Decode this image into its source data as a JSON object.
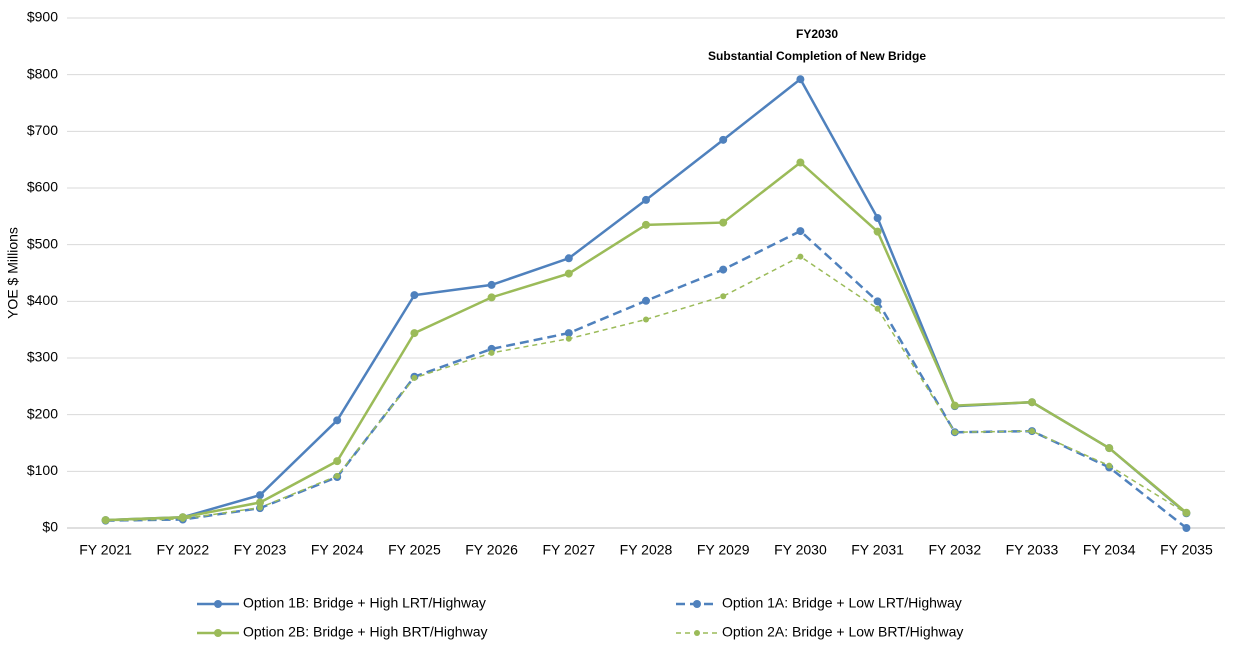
{
  "chart_data": {
    "type": "line",
    "ylabel": "YOE $ Millions",
    "annotations": [
      "FY2030",
      "Substantial Completion of New Bridge"
    ],
    "categories": [
      "FY 2021",
      "FY 2022",
      "FY 2023",
      "FY 2024",
      "FY 2025",
      "FY 2026",
      "FY 2027",
      "FY 2028",
      "FY 2029",
      "FY 2030",
      "FY 2031",
      "FY 2032",
      "FY 2033",
      "FY 2034",
      "FY 2035"
    ],
    "series": [
      {
        "name": "Option 1B: Bridge + High LRT/Highway",
        "color": "#4f81bd",
        "dashed": false,
        "values": [
          14,
          19,
          58,
          190,
          411,
          429,
          476,
          579,
          685,
          792,
          547,
          215,
          222,
          141,
          26
        ]
      },
      {
        "name": "Option 1A: Bridge + Low LRT/Highway",
        "color": "#4f81bd",
        "dashed": true,
        "values": [
          13,
          15,
          35,
          90,
          267,
          316,
          344,
          401,
          456,
          524,
          400,
          169,
          171,
          107,
          0
        ]
      },
      {
        "name": "Option 2B: Bridge + High BRT/Highway",
        "color": "#9bbb59",
        "dashed": false,
        "values": [
          14,
          19,
          45,
          118,
          344,
          407,
          449,
          535,
          539,
          645,
          523,
          216,
          222,
          141,
          27
        ]
      },
      {
        "name": "Option 2A: Bridge + Low BRT/Highway",
        "color": "#9bbb59",
        "dashed": true,
        "values": [
          13,
          16,
          36,
          92,
          265,
          309,
          334,
          368,
          409,
          479,
          387,
          169,
          171,
          110,
          26
        ]
      }
    ],
    "ylim": [
      0,
      900
    ],
    "yticks": [
      {
        "value": 0,
        "label": "$0"
      },
      {
        "value": 100,
        "label": "$100"
      },
      {
        "value": 200,
        "label": "$200"
      },
      {
        "value": 300,
        "label": "$300"
      },
      {
        "value": 400,
        "label": "$400"
      },
      {
        "value": 500,
        "label": "$500"
      },
      {
        "value": 600,
        "label": "$600"
      },
      {
        "value": 700,
        "label": "$700"
      },
      {
        "value": 800,
        "label": "$800"
      },
      {
        "value": 900,
        "label": "$900"
      }
    ],
    "grid": true,
    "legend": "bottom"
  }
}
